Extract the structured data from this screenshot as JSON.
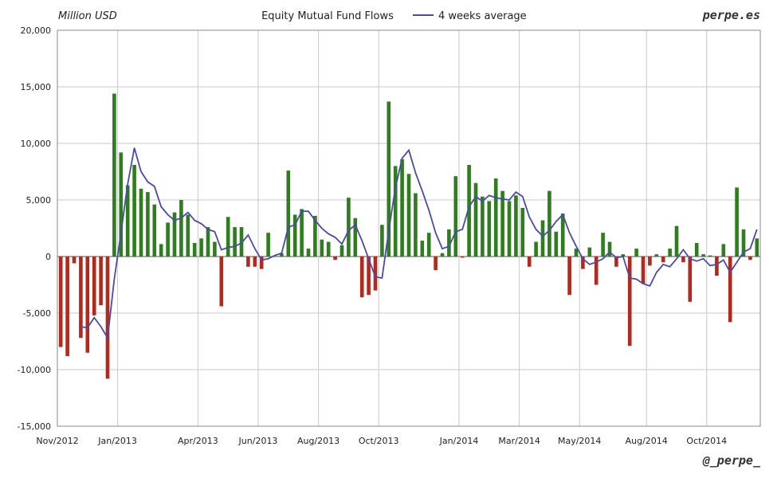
{
  "chart_data": {
    "type": "bar",
    "title": "Equity Mutual Fund Flows",
    "ylabel": "Million USD",
    "ylim": [
      -15000,
      20000
    ],
    "yticks": [
      20000,
      15000,
      10000,
      5000,
      0,
      -5000,
      -10000,
      -15000
    ],
    "ytick_labels": [
      "20,000",
      "15,000",
      "10,000",
      "5,000",
      "0",
      "-5,000",
      "-10,000",
      "-15,000"
    ],
    "grid": true,
    "xtick_labels": [
      {
        "label": "Nov/2012",
        "week": 0
      },
      {
        "label": "Jan/2013",
        "week": 9
      },
      {
        "label": "Apr/2013",
        "week": 21
      },
      {
        "label": "Jun/2013",
        "week": 30
      },
      {
        "label": "Aug/2013",
        "week": 39
      },
      {
        "label": "Oct/2013",
        "week": 48
      },
      {
        "label": "Jan/2014",
        "week": 60
      },
      {
        "label": "Mar/2014",
        "week": 69
      },
      {
        "label": "May/2014",
        "week": 78
      },
      {
        "label": "Aug/2014",
        "week": 88
      },
      {
        "label": "Oct/2014",
        "week": 97
      }
    ],
    "positive_color": "#2e7d1e",
    "negative_color": "#b22a1e",
    "line_color": "#4a4aa8",
    "series": [
      {
        "type": "bar",
        "values": [
          -8000,
          -8800,
          -600,
          -7200,
          -8500,
          -5200,
          -4300,
          -10800,
          14400,
          9200,
          6300,
          8100,
          6000,
          5700,
          4600,
          1100,
          3000,
          3900,
          5000,
          3700,
          1200,
          1600,
          2600,
          1300,
          -4400,
          3500,
          2600,
          2600,
          -900,
          -900,
          -1100,
          2100,
          0,
          300,
          7600,
          3700,
          4200,
          700,
          3600,
          1500,
          1300,
          -300,
          1000,
          5200,
          3400,
          -3600,
          -3400,
          -3000,
          2800,
          13700,
          8000,
          8600,
          7300,
          5600,
          1400,
          2100,
          -1200,
          300,
          2400,
          7100,
          -100,
          8100,
          6500,
          5300,
          4900,
          6900,
          5800,
          4900,
          5400,
          4300,
          -900,
          1300,
          3200,
          5800,
          2200,
          3800,
          -3400,
          700,
          -1100,
          800,
          -2500,
          2100,
          1300,
          -900,
          200,
          -7900,
          700,
          -2400,
          -800,
          200,
          -500,
          700,
          2700,
          -500,
          -4000,
          1200,
          200,
          100,
          -1700,
          1100,
          -5800,
          6100,
          2400,
          -300,
          1600
        ]
      },
      {
        "type": "line",
        "name": "4 weeks average",
        "values": [
          null,
          null,
          null,
          -6200,
          -6300,
          -5400,
          -6200,
          -7200,
          -2000,
          2100,
          6400,
          9600,
          7500,
          6600,
          6200,
          4400,
          3700,
          3200,
          3400,
          3900,
          3200,
          2900,
          2400,
          2200,
          600,
          800,
          900,
          1200,
          1900,
          700,
          -300,
          -200,
          100,
          300,
          2600,
          2800,
          4000,
          4000,
          3200,
          2500,
          2000,
          1700,
          1100,
          2300,
          2800,
          1400,
          -200,
          -1800,
          -1900,
          2300,
          6100,
          8700,
          9400,
          7400,
          5800,
          4100,
          2100,
          700,
          900,
          2200,
          2400,
          4400,
          5300,
          4900,
          5400,
          5200,
          5100,
          5000,
          5700,
          5300,
          3500,
          2400,
          1800,
          2300,
          3100,
          3700,
          2100,
          900,
          -200,
          -700,
          -500,
          -200,
          400,
          -100,
          0,
          -1900,
          -2000,
          -2400,
          -2600,
          -1400,
          -700,
          -900,
          -200,
          600,
          -200,
          -400,
          -200,
          -800,
          -700,
          -300,
          -1400,
          -500,
          400,
          700,
          2400
        ]
      }
    ],
    "legend": "top-center",
    "annotations": [
      "perpe.es",
      "@_perpe_"
    ]
  }
}
